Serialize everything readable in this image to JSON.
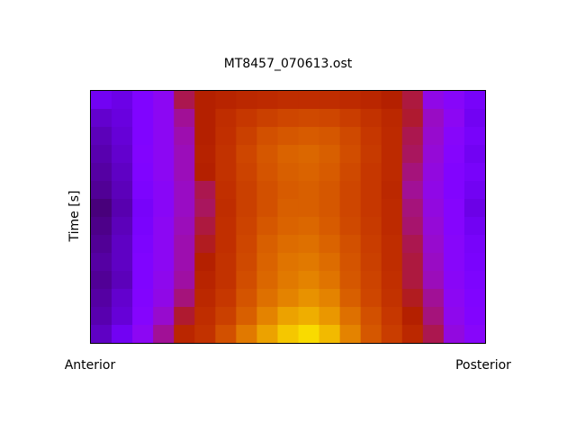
{
  "chart_data": {
    "type": "heatmap",
    "title": "MT8457_070613.ost",
    "ylabel": "Time [s]",
    "x_labels": [
      "Anterior",
      "Posterior"
    ],
    "colormap": "gnuplot",
    "clim": [
      0,
      1
    ],
    "z": [
      [
        0.2,
        0.18,
        0.25,
        0.3,
        0.45,
        0.5,
        0.52,
        0.54,
        0.55,
        0.56,
        0.56,
        0.56,
        0.55,
        0.53,
        0.5,
        0.46,
        0.32,
        0.28,
        0.22
      ],
      [
        0.15,
        0.17,
        0.25,
        0.3,
        0.4,
        0.5,
        0.56,
        0.6,
        0.63,
        0.65,
        0.66,
        0.65,
        0.62,
        0.58,
        0.54,
        0.47,
        0.36,
        0.3,
        0.2
      ],
      [
        0.13,
        0.16,
        0.25,
        0.3,
        0.38,
        0.5,
        0.57,
        0.63,
        0.68,
        0.7,
        0.71,
        0.7,
        0.66,
        0.6,
        0.55,
        0.45,
        0.35,
        0.28,
        0.22
      ],
      [
        0.12,
        0.15,
        0.26,
        0.3,
        0.37,
        0.51,
        0.58,
        0.65,
        0.7,
        0.73,
        0.74,
        0.72,
        0.67,
        0.61,
        0.55,
        0.44,
        0.34,
        0.27,
        0.2
      ],
      [
        0.11,
        0.14,
        0.25,
        0.3,
        0.37,
        0.5,
        0.58,
        0.64,
        0.69,
        0.72,
        0.73,
        0.71,
        0.66,
        0.6,
        0.55,
        0.42,
        0.33,
        0.26,
        0.22
      ],
      [
        0.1,
        0.13,
        0.24,
        0.29,
        0.36,
        0.45,
        0.57,
        0.63,
        0.68,
        0.71,
        0.72,
        0.7,
        0.65,
        0.6,
        0.54,
        0.4,
        0.32,
        0.26,
        0.2
      ],
      [
        0.08,
        0.12,
        0.22,
        0.29,
        0.36,
        0.44,
        0.56,
        0.63,
        0.68,
        0.72,
        0.72,
        0.7,
        0.65,
        0.6,
        0.55,
        0.42,
        0.33,
        0.27,
        0.18
      ],
      [
        0.09,
        0.13,
        0.23,
        0.3,
        0.37,
        0.46,
        0.57,
        0.64,
        0.7,
        0.73,
        0.74,
        0.71,
        0.66,
        0.61,
        0.55,
        0.43,
        0.34,
        0.27,
        0.2
      ],
      [
        0.1,
        0.14,
        0.24,
        0.3,
        0.38,
        0.48,
        0.57,
        0.65,
        0.72,
        0.75,
        0.76,
        0.73,
        0.68,
        0.62,
        0.56,
        0.45,
        0.35,
        0.28,
        0.22
      ],
      [
        0.11,
        0.14,
        0.25,
        0.3,
        0.38,
        0.5,
        0.58,
        0.66,
        0.73,
        0.77,
        0.78,
        0.75,
        0.69,
        0.63,
        0.56,
        0.46,
        0.36,
        0.28,
        0.23
      ],
      [
        0.1,
        0.13,
        0.25,
        0.31,
        0.39,
        0.52,
        0.58,
        0.67,
        0.74,
        0.78,
        0.8,
        0.77,
        0.7,
        0.64,
        0.57,
        0.46,
        0.37,
        0.29,
        0.24
      ],
      [
        0.11,
        0.15,
        0.26,
        0.32,
        0.42,
        0.54,
        0.6,
        0.69,
        0.76,
        0.8,
        0.83,
        0.8,
        0.72,
        0.65,
        0.58,
        0.48,
        0.4,
        0.3,
        0.25
      ],
      [
        0.12,
        0.16,
        0.27,
        0.35,
        0.47,
        0.56,
        0.63,
        0.72,
        0.8,
        0.86,
        0.88,
        0.84,
        0.76,
        0.68,
        0.6,
        0.5,
        0.42,
        0.31,
        0.26
      ],
      [
        0.14,
        0.2,
        0.3,
        0.4,
        0.53,
        0.58,
        0.68,
        0.78,
        0.86,
        0.92,
        0.95,
        0.9,
        0.8,
        0.7,
        0.62,
        0.54,
        0.45,
        0.33,
        0.28
      ]
    ]
  }
}
